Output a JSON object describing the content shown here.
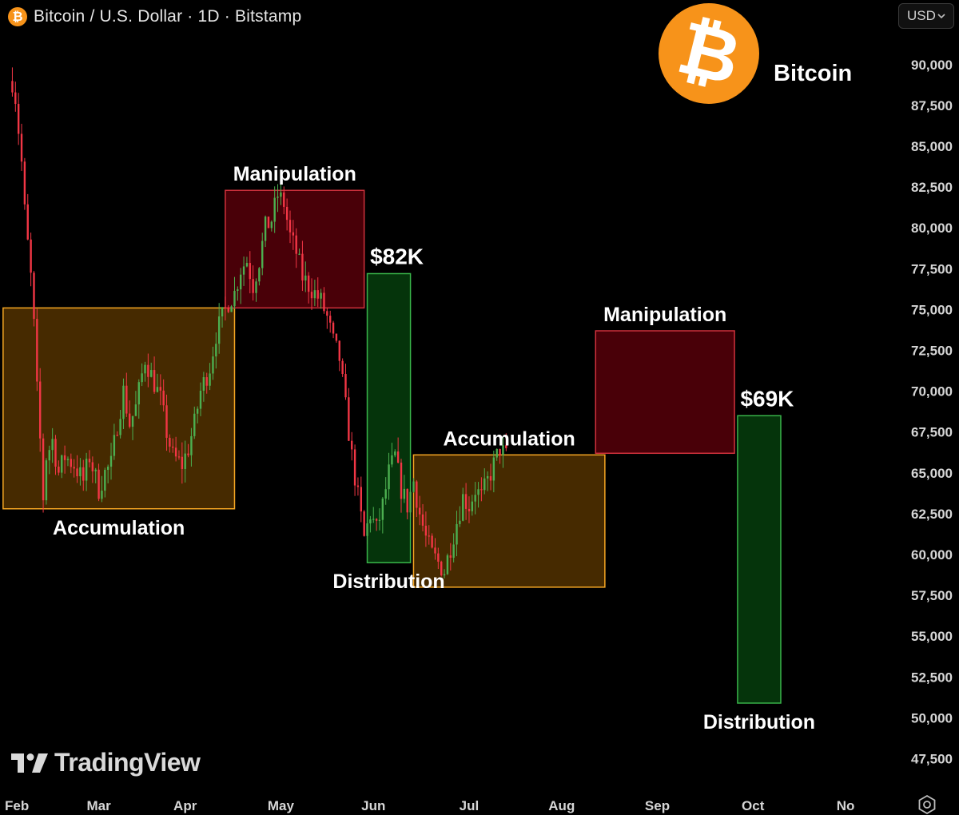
{
  "header": {
    "symbol_icon": "bitcoin-icon",
    "title": "Bitcoin / U.S. Dollar · 1D · Bitstamp",
    "currency_button": "USD"
  },
  "brand": {
    "coin_icon": "bitcoin-logo-icon",
    "coin_color": "#f7931a",
    "label": "Bitcoin"
  },
  "watermark": {
    "text": "TradingView"
  },
  "colors": {
    "background": "#000000",
    "candle_up": "#4caf50",
    "candle_down": "#f23645",
    "accumulation_fill": "#4a2c00",
    "accumulation_border": "#f5a623",
    "manipulation_fill": "#4d0008",
    "manipulation_border": "#d0313c",
    "distribution_fill": "#05370c",
    "distribution_border": "#39b54a"
  },
  "chart_data": {
    "type": "candlestick",
    "title": "Bitcoin / U.S. Dollar · 1D · Bitstamp",
    "x_axis": {
      "ticks": [
        "Feb",
        "Mar",
        "Apr",
        "May",
        "Jun",
        "Jul",
        "Aug",
        "Sep",
        "Oct",
        "No"
      ],
      "tick_days": [
        0,
        28,
        56,
        87,
        117,
        148,
        178,
        209,
        240,
        270
      ],
      "range_days": [
        -4,
        285
      ]
    },
    "y_axis": {
      "range": [
        46250,
        92000
      ],
      "ticks": [
        47500,
        50000,
        52500,
        55000,
        57500,
        60000,
        62500,
        65000,
        67500,
        70000,
        72500,
        75000,
        77500,
        80000,
        82500,
        85000,
        87500,
        90000
      ],
      "tick_labels": [
        "47,500",
        "50,000",
        "52,500",
        "55,000",
        "57,500",
        "60,000",
        "62,500",
        "65,000",
        "67,500",
        "70,000",
        "72,500",
        "75,000",
        "77,500",
        "80,000",
        "82,500",
        "85,000",
        "87,500",
        "90,000"
      ],
      "position": "right"
    },
    "price_waypoints": [
      [
        0,
        89000
      ],
      [
        1,
        88000
      ],
      [
        2,
        86000
      ],
      [
        3,
        84000
      ],
      [
        4,
        81000
      ],
      [
        5,
        79000
      ],
      [
        6,
        77000
      ],
      [
        7,
        74000
      ],
      [
        8,
        70000
      ],
      [
        9,
        67000
      ],
      [
        10,
        63500
      ],
      [
        11,
        66000
      ],
      [
        13,
        67000
      ],
      [
        15,
        65000
      ],
      [
        17,
        66000
      ],
      [
        20,
        65500
      ],
      [
        23,
        64500
      ],
      [
        25,
        66000
      ],
      [
        28,
        64000
      ],
      [
        30,
        65000
      ],
      [
        32,
        65500
      ],
      [
        34,
        68000
      ],
      [
        36,
        70000
      ],
      [
        38,
        68000
      ],
      [
        40,
        69000
      ],
      [
        43,
        72000
      ],
      [
        45,
        71000
      ],
      [
        48,
        69500
      ],
      [
        50,
        67500
      ],
      [
        52,
        66000
      ],
      [
        55,
        65500
      ],
      [
        57,
        66500
      ],
      [
        59,
        68000
      ],
      [
        61,
        70000
      ],
      [
        64,
        71500
      ],
      [
        66,
        73500
      ],
      [
        68,
        74500
      ],
      [
        70,
        75500
      ],
      [
        72,
        76000
      ],
      [
        74,
        77500
      ],
      [
        76,
        78000
      ],
      [
        78,
        76500
      ],
      [
        80,
        78000
      ],
      [
        82,
        80000
      ],
      [
        84,
        80500
      ],
      [
        86,
        82000
      ],
      [
        88,
        81500
      ],
      [
        90,
        79500
      ],
      [
        92,
        78500
      ],
      [
        94,
        77000
      ],
      [
        96,
        76500
      ],
      [
        98,
        76000
      ],
      [
        100,
        75500
      ],
      [
        102,
        74500
      ],
      [
        104,
        73000
      ],
      [
        106,
        72000
      ],
      [
        108,
        69000
      ],
      [
        110,
        66000
      ],
      [
        112,
        63500
      ],
      [
        114,
        61000
      ],
      [
        116,
        62500
      ],
      [
        118,
        61500
      ],
      [
        120,
        63000
      ],
      [
        122,
        65000
      ],
      [
        124,
        66000
      ],
      [
        126,
        64000
      ],
      [
        128,
        63000
      ],
      [
        130,
        64500
      ],
      [
        132,
        62500
      ],
      [
        134,
        61000
      ],
      [
        136,
        60000
      ],
      [
        138,
        59500
      ],
      [
        140,
        59000
      ],
      [
        142,
        60500
      ],
      [
        144,
        62000
      ],
      [
        146,
        63500
      ],
      [
        148,
        63000
      ],
      [
        150,
        64000
      ],
      [
        152,
        63500
      ],
      [
        154,
        64500
      ],
      [
        156,
        65500
      ],
      [
        158,
        66500
      ],
      [
        160,
        66000
      ]
    ],
    "zones": [
      {
        "name": "Accumulation",
        "type": "accumulation",
        "x_range": [
          -3,
          72
        ],
        "y_range": [
          62800,
          75100
        ],
        "label_position": "below"
      },
      {
        "name": "Manipulation",
        "type": "manipulation",
        "x_range": [
          69,
          114
        ],
        "y_range": [
          75100,
          82300
        ],
        "label_position": "above"
      },
      {
        "name": "Distribution",
        "type": "distribution",
        "x_range": [
          115,
          129
        ],
        "y_range": [
          59500,
          77200
        ],
        "label_position": "below",
        "price_label": "$82K"
      },
      {
        "name": "Accumulation",
        "type": "accumulation",
        "x_range": [
          130,
          192
        ],
        "y_range": [
          58000,
          66100
        ],
        "label_position": "above"
      },
      {
        "name": "Manipulation",
        "type": "manipulation",
        "x_range": [
          189,
          234
        ],
        "y_range": [
          66200,
          73700
        ],
        "label_position": "above"
      },
      {
        "name": "Distribution",
        "type": "distribution",
        "x_range": [
          235,
          249
        ],
        "y_range": [
          50900,
          68500
        ],
        "label_position": "below",
        "price_label": "$69K"
      }
    ],
    "grid": false,
    "legend": "none"
  }
}
